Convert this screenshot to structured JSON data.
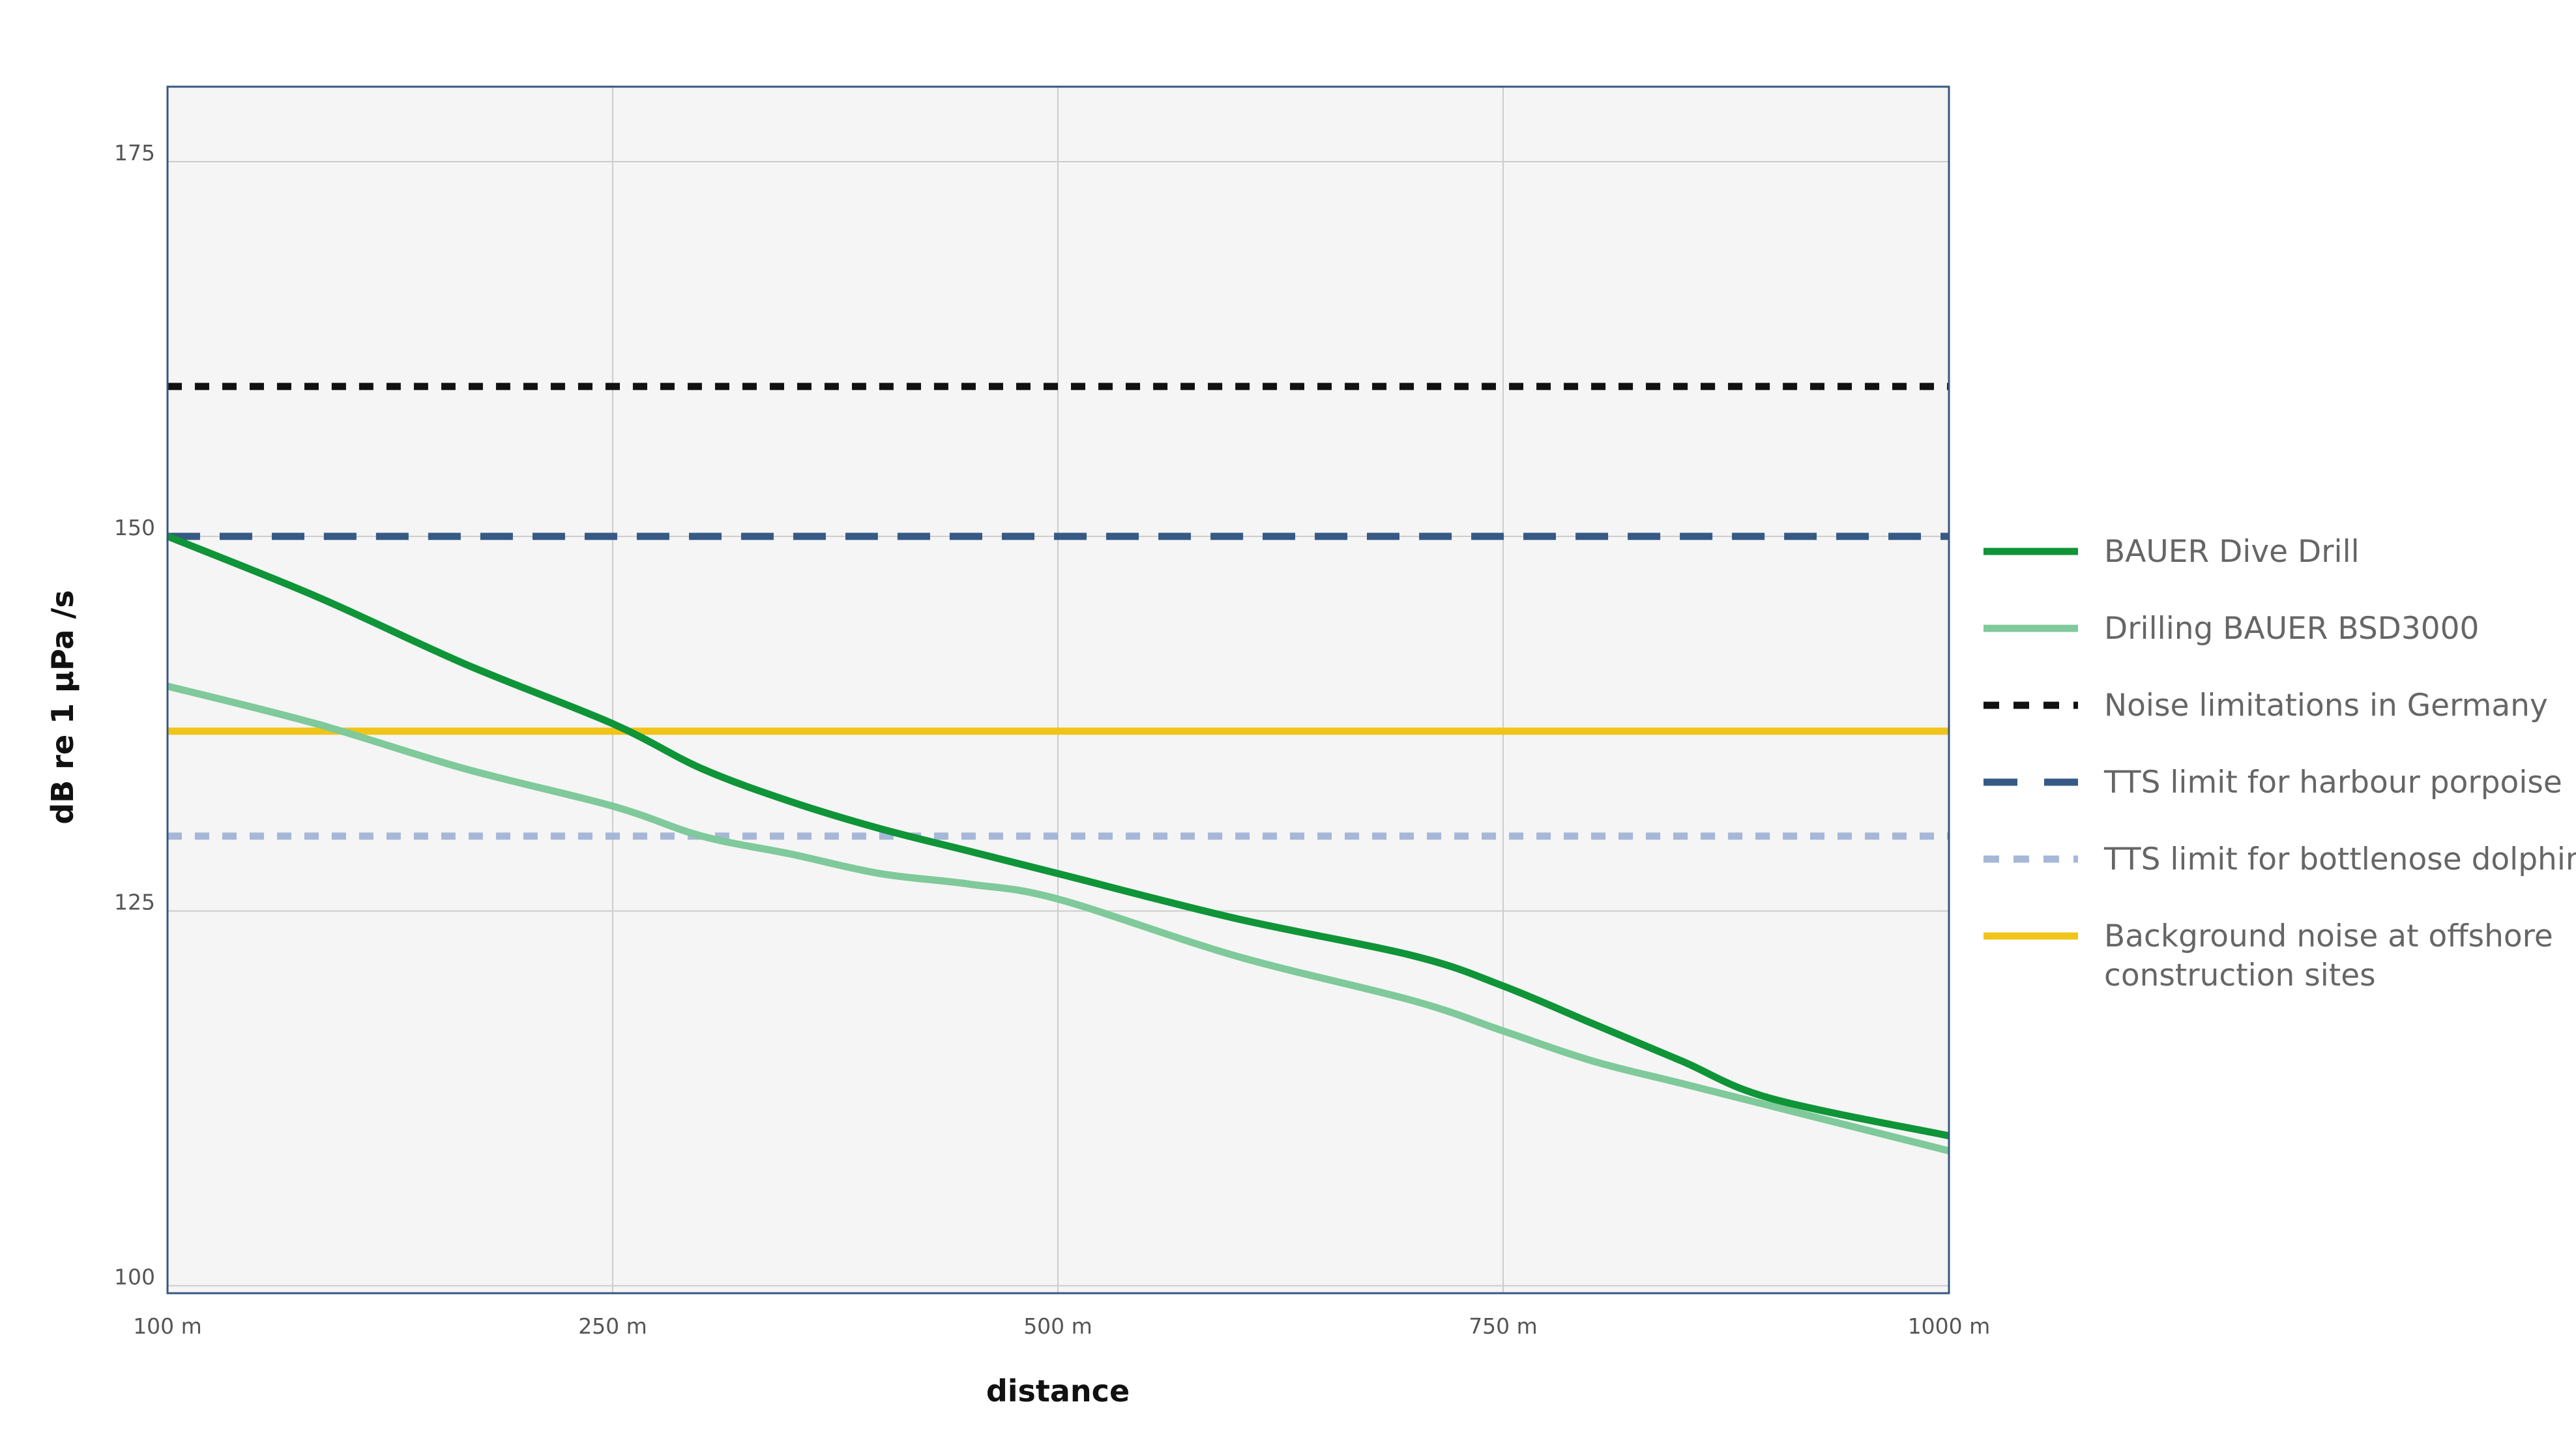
{
  "chart_data": {
    "type": "line",
    "title": "",
    "xlabel": "distance",
    "ylabel": "dB re 1 µPa /s",
    "grid": true,
    "legend_position": "right",
    "x_ticks": [
      {
        "value": 100,
        "label": "100 m"
      },
      {
        "value": 250,
        "label": "250 m"
      },
      {
        "value": 500,
        "label": "500 m"
      },
      {
        "value": 750,
        "label": "750 m"
      },
      {
        "value": 1000,
        "label": "1000 m"
      }
    ],
    "y_ticks": [
      {
        "value": 100,
        "label": "100"
      },
      {
        "value": 125,
        "label": "125"
      },
      {
        "value": 150,
        "label": "150"
      },
      {
        "value": 175,
        "label": "175"
      }
    ],
    "ylim": [
      99.5,
      180
    ],
    "series": [
      {
        "name": "BAUER Dive Drill",
        "color": "#0f9438",
        "style": "solid",
        "points": [
          [
            100,
            150
          ],
          [
            150,
            146
          ],
          [
            200,
            141.5
          ],
          [
            250,
            137.5
          ],
          [
            300,
            134.5
          ],
          [
            350,
            132.3
          ],
          [
            400,
            130.5
          ],
          [
            450,
            129
          ],
          [
            500,
            127.5
          ],
          [
            600,
            124.5
          ],
          [
            700,
            122
          ],
          [
            750,
            120
          ],
          [
            800,
            117.5
          ],
          [
            850,
            115
          ],
          [
            900,
            112.5
          ],
          [
            1000,
            110
          ]
        ]
      },
      {
        "name": "Drilling BAUER BSD3000",
        "color": "#7fc99b",
        "style": "solid",
        "points": [
          [
            100,
            140
          ],
          [
            150,
            137.5
          ],
          [
            200,
            134.5
          ],
          [
            250,
            132
          ],
          [
            300,
            130
          ],
          [
            350,
            128.8
          ],
          [
            400,
            127.5
          ],
          [
            450,
            126.8
          ],
          [
            500,
            125.8
          ],
          [
            600,
            122
          ],
          [
            700,
            119
          ],
          [
            750,
            117
          ],
          [
            800,
            115
          ],
          [
            850,
            113.5
          ],
          [
            900,
            112
          ],
          [
            1000,
            109
          ]
        ]
      },
      {
        "name": "Noise limitations in Germany",
        "color": "#111111",
        "style": "short-dash",
        "points": [
          [
            100,
            160
          ],
          [
            1000,
            160
          ]
        ]
      },
      {
        "name": "TTS limit for harbour porpoise",
        "color": "#365a85",
        "style": "long-dash",
        "points": [
          [
            100,
            150
          ],
          [
            1000,
            150
          ]
        ]
      },
      {
        "name": "TTS limit for bottlenose dolphine",
        "color": "#a6b7d8",
        "style": "short-dash",
        "points": [
          [
            100,
            130
          ],
          [
            1000,
            130
          ]
        ]
      },
      {
        "name": "Background noise at offshore construction sites",
        "legend_lines": [
          "Background noise at offshore",
          "construction sites"
        ],
        "color": "#f0c419",
        "style": "solid",
        "points": [
          [
            100,
            137
          ],
          [
            1000,
            137
          ]
        ]
      }
    ]
  }
}
